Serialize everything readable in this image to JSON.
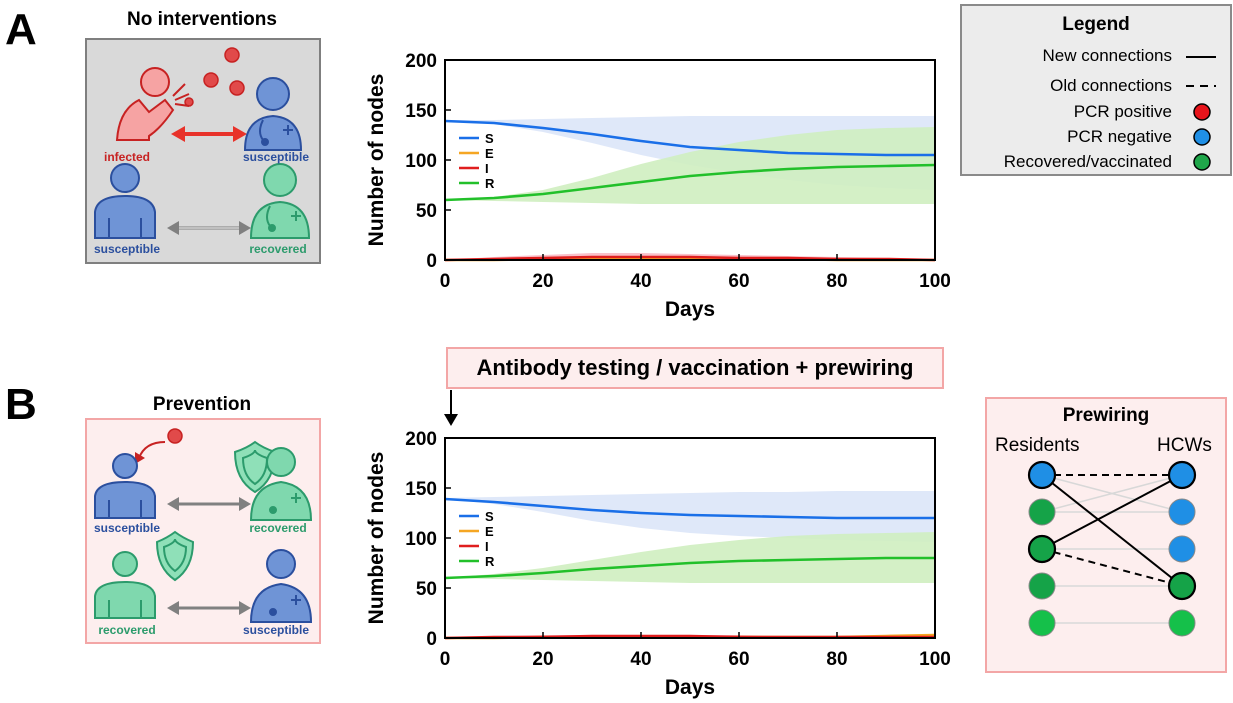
{
  "panel_a": {
    "letter": "A",
    "title": "No interventions",
    "labels": {
      "infected": "infected",
      "susceptible_top": "susceptible",
      "susceptible_bottom": "susceptible",
      "recovered": "recovered"
    },
    "icons": [
      "infected-person-coughing-icon",
      "virus-icon",
      "healthcare-worker-icon",
      "resident-person-icon",
      "healthcare-worker-recovered-icon",
      "double-arrow-icon"
    ]
  },
  "panel_b": {
    "letter": "B",
    "title": "Prevention",
    "labels": {
      "susceptible_top": "susceptible",
      "recovered_top": "recovered",
      "recovered_bottom": "recovered",
      "susceptible_bottom": "susceptible"
    },
    "icons": [
      "virus-icon",
      "shield-icon",
      "resident-person-icon",
      "healthcare-worker-icon",
      "double-arrow-icon"
    ]
  },
  "legend": {
    "title": "Legend",
    "items": [
      {
        "label": "New connections",
        "marker": "solid-line"
      },
      {
        "label": "Old connections",
        "marker": "dashed-line"
      },
      {
        "label": "PCR positive",
        "marker": "circle",
        "color": "#e8141b"
      },
      {
        "label": "PCR negative",
        "marker": "circle",
        "color": "#1f8fe5"
      },
      {
        "label": "Recovered/vaccinated",
        "marker": "circle",
        "color": "#1fa64a"
      }
    ]
  },
  "callout": {
    "text": "Antibody testing / vaccination + prewiring"
  },
  "prewiring": {
    "title": "Prewiring",
    "left_label": "Residents",
    "right_label": "HCWs",
    "residents": [
      "#1f8fe5",
      "#15a348",
      "#15a348",
      "#15a348",
      "#15c04a"
    ],
    "resident_outlined": [
      true,
      false,
      true,
      false,
      false
    ],
    "hcws": [
      "#1f8fe5",
      "#1f8fe5",
      "#1f8fe5",
      "#15a348",
      "#15c04a"
    ],
    "hcw_outlined": [
      true,
      false,
      false,
      true,
      false
    ],
    "solid_edges": [
      [
        0,
        3
      ],
      [
        2,
        0
      ]
    ],
    "dashed_edges": [
      [
        0,
        0
      ],
      [
        2,
        3
      ]
    ],
    "faint_edges": [
      [
        1,
        0
      ],
      [
        1,
        1
      ],
      [
        2,
        2
      ],
      [
        3,
        3
      ],
      [
        4,
        4
      ],
      [
        0,
        1
      ]
    ]
  },
  "colors": {
    "S": "#1a6fe8",
    "E": "#f5a623",
    "I": "#e01e1e",
    "R": "#22c02a",
    "S_band": "#dbe6f8",
    "R_band": "#cfeec0",
    "I_band": "#f8b9c3"
  },
  "chart_data": [
    {
      "type": "line",
      "xlabel": "Days",
      "ylabel": "Number of nodes",
      "xlim": [
        0,
        100
      ],
      "ylim": [
        0,
        200
      ],
      "xticks": [
        0,
        20,
        40,
        60,
        80,
        100
      ],
      "yticks": [
        0,
        50,
        100,
        150,
        200
      ],
      "x": [
        0,
        10,
        20,
        30,
        40,
        50,
        60,
        70,
        80,
        90,
        100
      ],
      "series": [
        {
          "name": "S",
          "values": [
            139,
            137,
            132,
            126,
            119,
            113,
            110,
            107,
            106,
            105,
            105
          ],
          "band_low": [
            139,
            136,
            128,
            117,
            105,
            95,
            87,
            80,
            75,
            72,
            70
          ],
          "band_high": [
            140,
            140,
            141,
            142,
            143,
            144,
            144,
            144,
            144,
            144,
            144
          ]
        },
        {
          "name": "E",
          "values": [
            0,
            0,
            1,
            1,
            1,
            1,
            1,
            1,
            0,
            0,
            0
          ]
        },
        {
          "name": "I",
          "values": [
            0,
            1,
            2,
            3,
            3,
            3,
            2,
            2,
            1,
            1,
            0
          ],
          "band_low": [
            0,
            0,
            0,
            0,
            0,
            0,
            0,
            0,
            0,
            0,
            0
          ],
          "band_high": [
            0,
            3,
            5,
            7,
            7,
            6,
            5,
            4,
            3,
            2,
            1
          ]
        },
        {
          "name": "R",
          "values": [
            60,
            62,
            66,
            72,
            78,
            84,
            88,
            91,
            93,
            94,
            95
          ],
          "band_low": [
            60,
            59,
            58,
            57,
            56,
            56,
            56,
            56,
            56,
            56,
            56
          ],
          "band_high": [
            60,
            63,
            70,
            82,
            96,
            108,
            118,
            125,
            130,
            132,
            133
          ]
        }
      ]
    },
    {
      "type": "line",
      "xlabel": "Days",
      "ylabel": "Number of nodes",
      "xlim": [
        0,
        100
      ],
      "ylim": [
        0,
        200
      ],
      "xticks": [
        0,
        20,
        40,
        60,
        80,
        100
      ],
      "yticks": [
        0,
        50,
        100,
        150,
        200
      ],
      "x": [
        0,
        10,
        20,
        30,
        40,
        50,
        60,
        70,
        80,
        90,
        100
      ],
      "series": [
        {
          "name": "S",
          "values": [
            139,
            136,
            132,
            128,
            125,
            123,
            122,
            121,
            120,
            120,
            120
          ],
          "band_low": [
            139,
            134,
            126,
            117,
            110,
            105,
            102,
            100,
            98,
            97,
            96
          ],
          "band_high": [
            140,
            141,
            142,
            143,
            144,
            145,
            146,
            146,
            147,
            147,
            147
          ]
        },
        {
          "name": "E",
          "values": [
            0,
            0,
            1,
            1,
            1,
            1,
            1,
            1,
            1,
            2,
            3
          ]
        },
        {
          "name": "I",
          "values": [
            0,
            1,
            1,
            2,
            2,
            2,
            1,
            1,
            1,
            1,
            1
          ],
          "band_low": [
            0,
            0,
            0,
            0,
            0,
            0,
            0,
            0,
            0,
            0,
            0
          ],
          "band_high": [
            0,
            2,
            3,
            3,
            3,
            3,
            3,
            2,
            2,
            2,
            2
          ]
        },
        {
          "name": "R",
          "values": [
            60,
            62,
            65,
            69,
            72,
            75,
            77,
            78,
            79,
            80,
            80
          ],
          "band_low": [
            60,
            59,
            58,
            57,
            56,
            55,
            55,
            55,
            55,
            55,
            55
          ],
          "band_high": [
            60,
            64,
            70,
            78,
            86,
            93,
            98,
            102,
            104,
            105,
            106
          ]
        }
      ]
    }
  ]
}
